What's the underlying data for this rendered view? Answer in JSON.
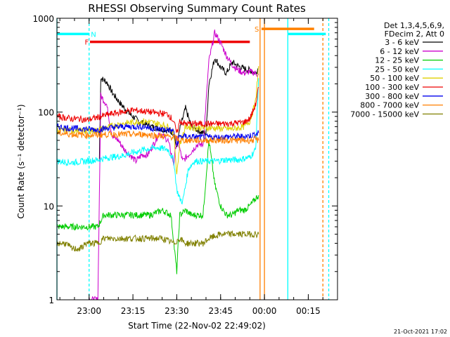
{
  "chart_data": {
    "type": "line",
    "title": "RHESSI Observing Summary Count Rates",
    "xlabel": "Start Time (22-Nov-02 22:49:02)",
    "ylabel": "Count Rate (s⁻¹ detector⁻¹)",
    "y_scale": "log",
    "ylim": [
      1,
      1000
    ],
    "xlim_minutes": [
      0,
      96
    ],
    "x_ticks": [
      {
        "label": "23:00",
        "minute": 11
      },
      {
        "label": "23:15",
        "minute": 26
      },
      {
        "label": "23:30",
        "minute": 41
      },
      {
        "label": "23:45",
        "minute": 56
      },
      {
        "label": "00:00",
        "minute": 71
      },
      {
        "label": "00:15",
        "minute": 86
      }
    ],
    "y_ticks": [
      {
        "label": "1",
        "value": 1
      },
      {
        "label": "10",
        "value": 10
      },
      {
        "label": "100",
        "value": 100
      },
      {
        "label": "1000",
        "value": 1000
      }
    ],
    "legend_header": [
      "Det 1,3,4,5,6,9,",
      "FDecim 2, Att 0"
    ],
    "legend_position": "right",
    "series": [
      {
        "name": "3 - 6 keV",
        "color": "#000000",
        "points": [
          [
            14.5,
            30
          ],
          [
            15,
            230
          ],
          [
            17,
            210
          ],
          [
            19,
            160
          ],
          [
            22,
            120
          ],
          [
            25,
            95
          ],
          [
            28,
            80
          ],
          [
            31,
            72
          ],
          [
            34,
            68
          ],
          [
            37,
            65
          ],
          [
            40,
            60
          ],
          [
            41,
            40
          ],
          [
            42,
            65
          ],
          [
            44,
            110
          ],
          [
            46,
            70
          ],
          [
            50,
            60
          ],
          [
            51,
            60
          ],
          [
            52,
            200
          ],
          [
            54,
            380
          ],
          [
            56,
            300
          ],
          [
            58,
            260
          ],
          [
            60,
            340
          ],
          [
            62,
            310
          ],
          [
            64,
            290
          ],
          [
            66,
            280
          ],
          [
            68,
            260
          ],
          [
            69,
            300
          ]
        ]
      },
      {
        "name": "6 - 12 keV",
        "color": "#cc00cc",
        "points": [
          [
            11,
            1
          ],
          [
            11.5,
            1
          ],
          [
            14,
            1
          ],
          [
            15,
            150
          ],
          [
            17,
            120
          ],
          [
            18,
            80
          ],
          [
            19,
            55
          ],
          [
            21,
            50
          ],
          [
            23,
            40
          ],
          [
            25,
            35
          ],
          [
            27,
            30
          ],
          [
            29,
            35
          ],
          [
            31,
            35
          ],
          [
            33,
            45
          ],
          [
            35,
            60
          ],
          [
            38,
            50
          ],
          [
            40,
            28
          ],
          [
            41,
            55
          ],
          [
            43,
            30
          ],
          [
            45,
            35
          ],
          [
            48,
            45
          ],
          [
            50,
            45
          ],
          [
            52,
            350
          ],
          [
            54,
            700
          ],
          [
            56,
            550
          ],
          [
            58,
            400
          ],
          [
            60,
            320
          ],
          [
            62,
            280
          ],
          [
            64,
            260
          ],
          [
            66,
            270
          ],
          [
            68,
            260
          ],
          [
            69,
            250
          ]
        ]
      },
      {
        "name": "12 - 25 keV",
        "color": "#00cc00",
        "points": [
          [
            0,
            6
          ],
          [
            5,
            6
          ],
          [
            10,
            6
          ],
          [
            14,
            6
          ],
          [
            16,
            8
          ],
          [
            20,
            8
          ],
          [
            24,
            8
          ],
          [
            28,
            8
          ],
          [
            32,
            8
          ],
          [
            36,
            9
          ],
          [
            39,
            8
          ],
          [
            40,
            4
          ],
          [
            41,
            2
          ],
          [
            42,
            8
          ],
          [
            44,
            9
          ],
          [
            46,
            8
          ],
          [
            50,
            8
          ],
          [
            52,
            50
          ],
          [
            54,
            17
          ],
          [
            56,
            10
          ],
          [
            58,
            8
          ],
          [
            60,
            8
          ],
          [
            62,
            9
          ],
          [
            64,
            9
          ],
          [
            66,
            10
          ],
          [
            68,
            12
          ],
          [
            69,
            13
          ]
        ]
      },
      {
        "name": "25 - 50 keV",
        "color": "#00ffff",
        "points": [
          [
            0,
            30
          ],
          [
            5,
            29
          ],
          [
            10,
            30
          ],
          [
            14,
            31
          ],
          [
            18,
            33
          ],
          [
            22,
            34
          ],
          [
            26,
            37
          ],
          [
            30,
            40
          ],
          [
            34,
            42
          ],
          [
            38,
            40
          ],
          [
            40,
            30
          ],
          [
            41,
            15
          ],
          [
            42,
            12
          ],
          [
            43,
            11
          ],
          [
            45,
            25
          ],
          [
            47,
            30
          ],
          [
            50,
            30
          ],
          [
            54,
            30
          ],
          [
            58,
            31
          ],
          [
            62,
            31
          ],
          [
            66,
            33
          ],
          [
            68,
            40
          ],
          [
            69,
            230
          ]
        ]
      },
      {
        "name": "50 - 100 keV",
        "color": "#e0d000",
        "points": [
          [
            0,
            64
          ],
          [
            5,
            64
          ],
          [
            10,
            63
          ],
          [
            14,
            64
          ],
          [
            18,
            70
          ],
          [
            22,
            75
          ],
          [
            26,
            78
          ],
          [
            30,
            80
          ],
          [
            34,
            76
          ],
          [
            38,
            70
          ],
          [
            40,
            60
          ],
          [
            41,
            22
          ],
          [
            42,
            45
          ],
          [
            44,
            70
          ],
          [
            48,
            68
          ],
          [
            52,
            68
          ],
          [
            56,
            67
          ],
          [
            60,
            66
          ],
          [
            64,
            70
          ],
          [
            66,
            80
          ],
          [
            68,
            130
          ],
          [
            69,
            310
          ]
        ]
      },
      {
        "name": "100 - 300 keV",
        "color": "#ee0000",
        "points": [
          [
            0,
            90
          ],
          [
            5,
            85
          ],
          [
            8,
            85
          ],
          [
            10,
            82
          ],
          [
            14,
            88
          ],
          [
            18,
            95
          ],
          [
            22,
            100
          ],
          [
            26,
            105
          ],
          [
            30,
            102
          ],
          [
            34,
            98
          ],
          [
            38,
            95
          ],
          [
            40,
            80
          ],
          [
            41,
            58
          ],
          [
            42,
            80
          ],
          [
            44,
            75
          ],
          [
            48,
            75
          ],
          [
            52,
            75
          ],
          [
            56,
            75
          ],
          [
            60,
            76
          ],
          [
            64,
            78
          ],
          [
            66,
            85
          ],
          [
            68,
            120
          ],
          [
            69,
            185
          ]
        ]
      },
      {
        "name": "300 - 800 keV",
        "color": "#0000ee",
        "points": [
          [
            0,
            70
          ],
          [
            5,
            67
          ],
          [
            10,
            66
          ],
          [
            14,
            65
          ],
          [
            18,
            68
          ],
          [
            22,
            70
          ],
          [
            26,
            70
          ],
          [
            30,
            70
          ],
          [
            34,
            66
          ],
          [
            38,
            65
          ],
          [
            40,
            62
          ],
          [
            41,
            45
          ],
          [
            42,
            55
          ],
          [
            44,
            55
          ],
          [
            48,
            54
          ],
          [
            52,
            54
          ],
          [
            56,
            54
          ],
          [
            60,
            55
          ],
          [
            64,
            55
          ],
          [
            66,
            56
          ],
          [
            68,
            58
          ],
          [
            69,
            60
          ]
        ]
      },
      {
        "name": "800 - 7000 keV",
        "color": "#ff8000",
        "points": [
          [
            0,
            60
          ],
          [
            5,
            58
          ],
          [
            10,
            57
          ],
          [
            14,
            57
          ],
          [
            18,
            58
          ],
          [
            22,
            58
          ],
          [
            26,
            58
          ],
          [
            30,
            58
          ],
          [
            34,
            56
          ],
          [
            38,
            55
          ],
          [
            40,
            54
          ],
          [
            42,
            50
          ],
          [
            44,
            50
          ],
          [
            48,
            50
          ],
          [
            52,
            50
          ],
          [
            56,
            50
          ],
          [
            60,
            50
          ],
          [
            64,
            50
          ],
          [
            66,
            50
          ],
          [
            68,
            51
          ],
          [
            69,
            50
          ]
        ]
      },
      {
        "name": "7000 - 15000 keV",
        "color": "#808000",
        "points": [
          [
            0,
            4
          ],
          [
            3,
            4
          ],
          [
            5,
            3.5
          ],
          [
            8,
            3.5
          ],
          [
            10,
            4
          ],
          [
            14,
            4
          ],
          [
            16,
            4.5
          ],
          [
            20,
            4.5
          ],
          [
            24,
            4.5
          ],
          [
            28,
            4.5
          ],
          [
            32,
            4.5
          ],
          [
            36,
            4.5
          ],
          [
            40,
            4
          ],
          [
            42,
            4.5
          ],
          [
            44,
            4
          ],
          [
            46,
            4
          ],
          [
            48,
            4
          ],
          [
            50,
            4
          ],
          [
            52,
            4.5
          ],
          [
            56,
            5
          ],
          [
            60,
            5
          ],
          [
            64,
            5
          ],
          [
            66,
            5
          ],
          [
            68,
            5
          ],
          [
            69,
            5
          ]
        ]
      }
    ],
    "flag_bars": [
      {
        "label": "N",
        "color": "#00ffff",
        "start_minute": 0,
        "end_minute": 11,
        "value": 680,
        "label_minute": 11.6
      },
      {
        "label": "F",
        "color": "#ee0000",
        "start_minute": 11.3,
        "end_minute": 66,
        "value": 560,
        "label_minute": 9.5
      },
      {
        "label": "S",
        "color": "#ff8000",
        "start_minute": 70,
        "end_minute": 88,
        "value": 770,
        "label_minute": 67.6
      },
      {
        "label": "",
        "color": "#00ffff",
        "start_minute": 79,
        "end_minute": 92,
        "value": 680,
        "label_minute": 0
      }
    ],
    "vertical_markers": [
      {
        "minute": 0,
        "color": "#00ffff",
        "style": "solid"
      },
      {
        "minute": 11,
        "color": "#00ffff",
        "style": "dashed"
      },
      {
        "minute": 69.5,
        "color": "#ff8000",
        "style": "solid"
      },
      {
        "minute": 71,
        "color": "#ff8000",
        "style": "solid"
      },
      {
        "minute": 79,
        "color": "#00ffff",
        "style": "solid"
      },
      {
        "minute": 91,
        "color": "#ff8000",
        "style": "dashed"
      },
      {
        "minute": 93,
        "color": "#00ffff",
        "style": "dashed"
      }
    ]
  },
  "footer": {
    "timestamp": "21-Oct-2021 17:02"
  }
}
